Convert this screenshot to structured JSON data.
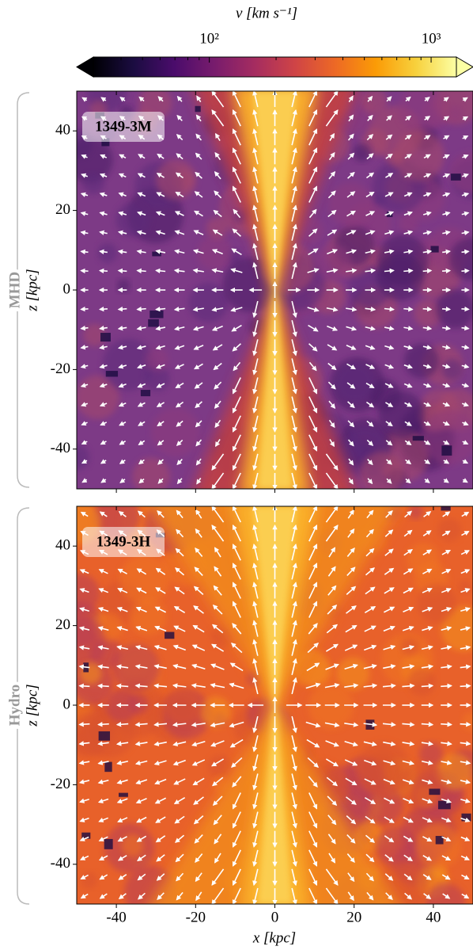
{
  "chart_data": {
    "type": "heatmap",
    "colorbar": {
      "label": "v [km s⁻¹]",
      "scale": "log",
      "lim": [
        30,
        1300
      ],
      "ticks": [
        {
          "value": 100,
          "label": "10²"
        },
        {
          "value": 1000,
          "label": "10³"
        }
      ],
      "minor_ticks": [
        40,
        50,
        60,
        70,
        80,
        90,
        200,
        300,
        400,
        500,
        600,
        700,
        800,
        900
      ],
      "colors": [
        "#000004",
        "#1b0c41",
        "#4a0c6b",
        "#781c6d",
        "#a52c60",
        "#cf4446",
        "#ed6925",
        "#fb9b06",
        "#f7d13d",
        "#fcffa4"
      ]
    },
    "xlim": [
      -50,
      50
    ],
    "ylim": [
      -50,
      50
    ],
    "xticks": [
      -40,
      -20,
      0,
      20,
      40
    ],
    "yticks": [
      -40,
      -20,
      0,
      20,
      40
    ],
    "xlabel": "x [kpc]",
    "ylabel": "z [kpc]",
    "panels": [
      {
        "label": "1349-3M",
        "group": "MHD"
      },
      {
        "label": "1349-3H",
        "group": "Hydro"
      }
    ]
  }
}
